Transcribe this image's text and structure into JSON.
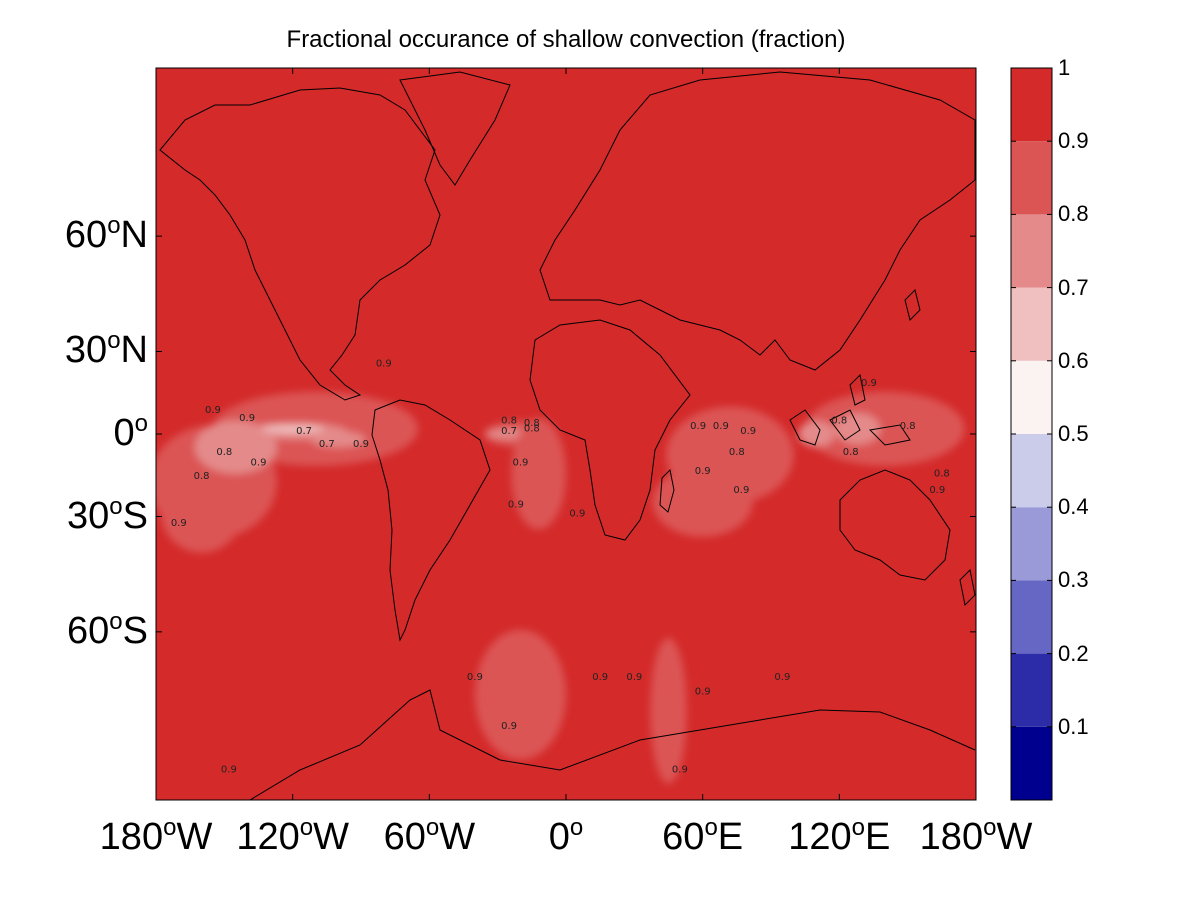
{
  "chart_data": {
    "type": "heatmap",
    "title": "Fractional occurance of shallow convection (fraction)",
    "projection": "mercator",
    "xlim": [
      -180,
      180
    ],
    "ylim": [
      -80,
      80
    ],
    "x_ticks": [
      {
        "value": -180,
        "num": "180",
        "dir": "W"
      },
      {
        "value": -120,
        "num": "120",
        "dir": "W"
      },
      {
        "value": -60,
        "num": "60",
        "dir": "W"
      },
      {
        "value": 0,
        "num": "0",
        "dir": ""
      },
      {
        "value": 60,
        "num": "60",
        "dir": "E"
      },
      {
        "value": 120,
        "num": "120",
        "dir": "E"
      },
      {
        "value": 180,
        "num": "180",
        "dir": "W"
      }
    ],
    "y_ticks": [
      {
        "value": 60,
        "num": "60",
        "dir": "N"
      },
      {
        "value": 30,
        "num": "30",
        "dir": "N"
      },
      {
        "value": 0,
        "num": "0",
        "dir": ""
      },
      {
        "value": -30,
        "num": "30",
        "dir": "S"
      },
      {
        "value": -60,
        "num": "60",
        "dir": "S"
      }
    ],
    "colorbar": {
      "range": [
        0,
        1
      ],
      "levels": [
        0.1,
        0.2,
        0.3,
        0.4,
        0.5,
        0.6,
        0.7,
        0.8,
        0.9,
        1
      ],
      "tick_labels": [
        "0.1",
        "0.2",
        "0.3",
        "0.4",
        "0.5",
        "0.6",
        "0.7",
        "0.8",
        "0.9",
        "1"
      ],
      "colors": [
        "#00008f",
        "#2c2ca8",
        "#6666c4",
        "#9a9ad8",
        "#cbcbea",
        "#fbf2f2",
        "#f0c0c0",
        "#e48a8a",
        "#dc5555",
        "#d42a2a"
      ]
    },
    "background_value": 0.95,
    "regions": [
      {
        "lon": -155,
        "lat": -18,
        "rlon": 28,
        "rlat": 20,
        "value": 0.85
      },
      {
        "lon": -110,
        "lat": 2,
        "rlon": 45,
        "rlat": 14,
        "value": 0.85
      },
      {
        "lon": -145,
        "lat": -5,
        "rlon": 18,
        "rlat": 10,
        "value": 0.75
      },
      {
        "lon": -118,
        "lat": 1,
        "rlon": 22,
        "rlat": 3,
        "value": 0.75
      },
      {
        "lon": -100,
        "lat": -2,
        "rlon": 12,
        "rlat": 3,
        "value": 0.75
      },
      {
        "lon": -120,
        "lat": 2,
        "rlon": 14,
        "rlat": 1.5,
        "value": 0.65
      },
      {
        "lon": -160,
        "lat": -28,
        "rlon": 18,
        "rlat": 14,
        "value": 0.85
      },
      {
        "lon": -20,
        "lat": 0,
        "rlon": 16,
        "rlat": 5,
        "value": 0.85
      },
      {
        "lon": -25,
        "lat": 0,
        "rlon": 10,
        "rlat": 2,
        "value": 0.75
      },
      {
        "lon": -12,
        "lat": -15,
        "rlon": 12,
        "rlat": 20,
        "value": 0.85
      },
      {
        "lon": 72,
        "lat": -8,
        "rlon": 28,
        "rlat": 18,
        "value": 0.85
      },
      {
        "lon": 60,
        "lat": -25,
        "rlon": 22,
        "rlat": 12,
        "value": 0.85
      },
      {
        "lon": 140,
        "lat": 2,
        "rlon": 35,
        "rlat": 14,
        "value": 0.85
      },
      {
        "lon": 128,
        "lat": 2,
        "rlon": 10,
        "rlat": 6,
        "value": 0.75
      },
      {
        "lon": 110,
        "lat": 0,
        "rlon": 8,
        "rlat": 5,
        "value": 0.75
      },
      {
        "lon": -20,
        "lat": -70,
        "rlon": 20,
        "rlat": 8,
        "value": 0.85
      },
      {
        "lon": 45,
        "lat": -72,
        "rlon": 8,
        "rlat": 8,
        "value": 0.85
      }
    ],
    "contour_labels": [
      {
        "lon": -155,
        "lat": 8,
        "text": "0.9"
      },
      {
        "lon": -140,
        "lat": 5,
        "text": "0.9"
      },
      {
        "lon": -115,
        "lat": 0,
        "text": "0.7"
      },
      {
        "lon": -105,
        "lat": -5,
        "text": "0.7"
      },
      {
        "lon": -150,
        "lat": -8,
        "text": "0.8"
      },
      {
        "lon": -135,
        "lat": -12,
        "text": "0.9"
      },
      {
        "lon": -160,
        "lat": -17,
        "text": "0.8"
      },
      {
        "lon": -80,
        "lat": 25,
        "text": "0.9"
      },
      {
        "lon": -90,
        "lat": -5,
        "text": "0.9"
      },
      {
        "lon": -25,
        "lat": 4,
        "text": "0.8"
      },
      {
        "lon": -15,
        "lat": 3,
        "text": "0.8"
      },
      {
        "lon": -25,
        "lat": 0,
        "text": "0.7"
      },
      {
        "lon": -15,
        "lat": 1,
        "text": "0.8"
      },
      {
        "lon": -20,
        "lat": -12,
        "text": "0.9"
      },
      {
        "lon": -22,
        "lat": -27,
        "text": "0.9"
      },
      {
        "lon": 5,
        "lat": -30,
        "text": "0.9"
      },
      {
        "lon": 58,
        "lat": 2,
        "text": "0.9"
      },
      {
        "lon": 68,
        "lat": 2,
        "text": "0.9"
      },
      {
        "lon": 80,
        "lat": 0,
        "text": "0.9"
      },
      {
        "lon": 75,
        "lat": -8,
        "text": "0.8"
      },
      {
        "lon": 60,
        "lat": -15,
        "text": "0.9"
      },
      {
        "lon": 77,
        "lat": -22,
        "text": "0.9"
      },
      {
        "lon": 133,
        "lat": 18,
        "text": "0.9"
      },
      {
        "lon": 120,
        "lat": 4,
        "text": "0.8"
      },
      {
        "lon": 150,
        "lat": 2,
        "text": "0.8"
      },
      {
        "lon": 125,
        "lat": -8,
        "text": "0.8"
      },
      {
        "lon": 165,
        "lat": -16,
        "text": "0.8"
      },
      {
        "lon": 163,
        "lat": -22,
        "text": "0.9"
      },
      {
        "lon": -170,
        "lat": -33,
        "text": "0.9"
      },
      {
        "lon": -148,
        "lat": -78,
        "text": "0.9"
      },
      {
        "lon": -40,
        "lat": -68,
        "text": "0.9"
      },
      {
        "lon": 15,
        "lat": -68,
        "text": "0.9"
      },
      {
        "lon": 30,
        "lat": -68,
        "text": "0.9"
      },
      {
        "lon": 60,
        "lat": -70,
        "text": "0.9"
      },
      {
        "lon": 95,
        "lat": -68,
        "text": "0.9"
      },
      {
        "lon": -25,
        "lat": -74,
        "text": "0.9"
      },
      {
        "lon": 50,
        "lat": -78,
        "text": "0.9"
      }
    ]
  }
}
